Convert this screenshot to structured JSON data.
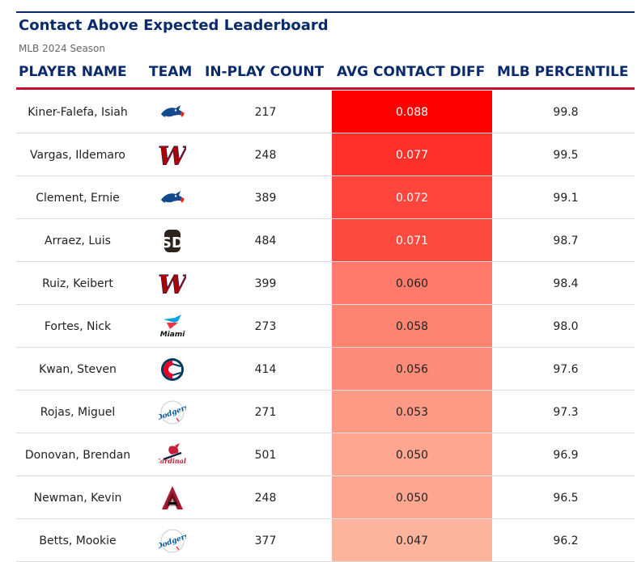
{
  "header": {
    "title": "Contact Above Expected Leaderboard",
    "subtitle": "MLB 2024 Season"
  },
  "columns": {
    "player": "PLAYER NAME",
    "team": "TEAM",
    "count": "IN-PLAY COUNT",
    "diff": "AVG CONTACT DIFF",
    "percentile": "MLB PERCENTILE"
  },
  "colors": {
    "navy": "#0a2a6e",
    "red": "#c8102e",
    "heat_high": "#ff0000",
    "heat_low": "#fdb49c"
  },
  "chart_data": {
    "type": "table",
    "title": "Contact Above Expected Leaderboard",
    "subtitle": "MLB 2024 Season",
    "rows": [
      {
        "player": "Kiner-Falefa, Isiah",
        "team": "Blue Jays",
        "logo": "bluejays-icon",
        "count": "217",
        "diff": "0.088",
        "percentile": "99.8"
      },
      {
        "player": "Vargas, Ildemaro",
        "team": "Nationals",
        "logo": "nationals-icon",
        "count": "248",
        "diff": "0.077",
        "percentile": "99.5"
      },
      {
        "player": "Clement, Ernie",
        "team": "Blue Jays",
        "logo": "bluejays-icon",
        "count": "389",
        "diff": "0.072",
        "percentile": "99.1"
      },
      {
        "player": "Arraez, Luis",
        "team": "Padres",
        "logo": "padres-icon",
        "count": "484",
        "diff": "0.071",
        "percentile": "98.7"
      },
      {
        "player": "Ruiz, Keibert",
        "team": "Nationals",
        "logo": "nationals-icon",
        "count": "399",
        "diff": "0.060",
        "percentile": "98.4"
      },
      {
        "player": "Fortes, Nick",
        "team": "Marlins",
        "logo": "marlins-icon",
        "count": "273",
        "diff": "0.058",
        "percentile": "98.0"
      },
      {
        "player": "Kwan, Steven",
        "team": "Guardians",
        "logo": "guardians-icon",
        "count": "414",
        "diff": "0.056",
        "percentile": "97.6"
      },
      {
        "player": "Rojas, Miguel",
        "team": "Dodgers",
        "logo": "dodgers-icon",
        "count": "271",
        "diff": "0.053",
        "percentile": "97.3"
      },
      {
        "player": "Donovan, Brendan",
        "team": "Cardinals",
        "logo": "cardinals-icon",
        "count": "501",
        "diff": "0.050",
        "percentile": "96.9"
      },
      {
        "player": "Newman, Kevin",
        "team": "Diamondbacks",
        "logo": "diamondbacks-icon",
        "count": "248",
        "diff": "0.050",
        "percentile": "96.5"
      },
      {
        "player": "Betts, Mookie",
        "team": "Dodgers",
        "logo": "dodgers-icon",
        "count": "377",
        "diff": "0.047",
        "percentile": "96.2"
      }
    ]
  }
}
